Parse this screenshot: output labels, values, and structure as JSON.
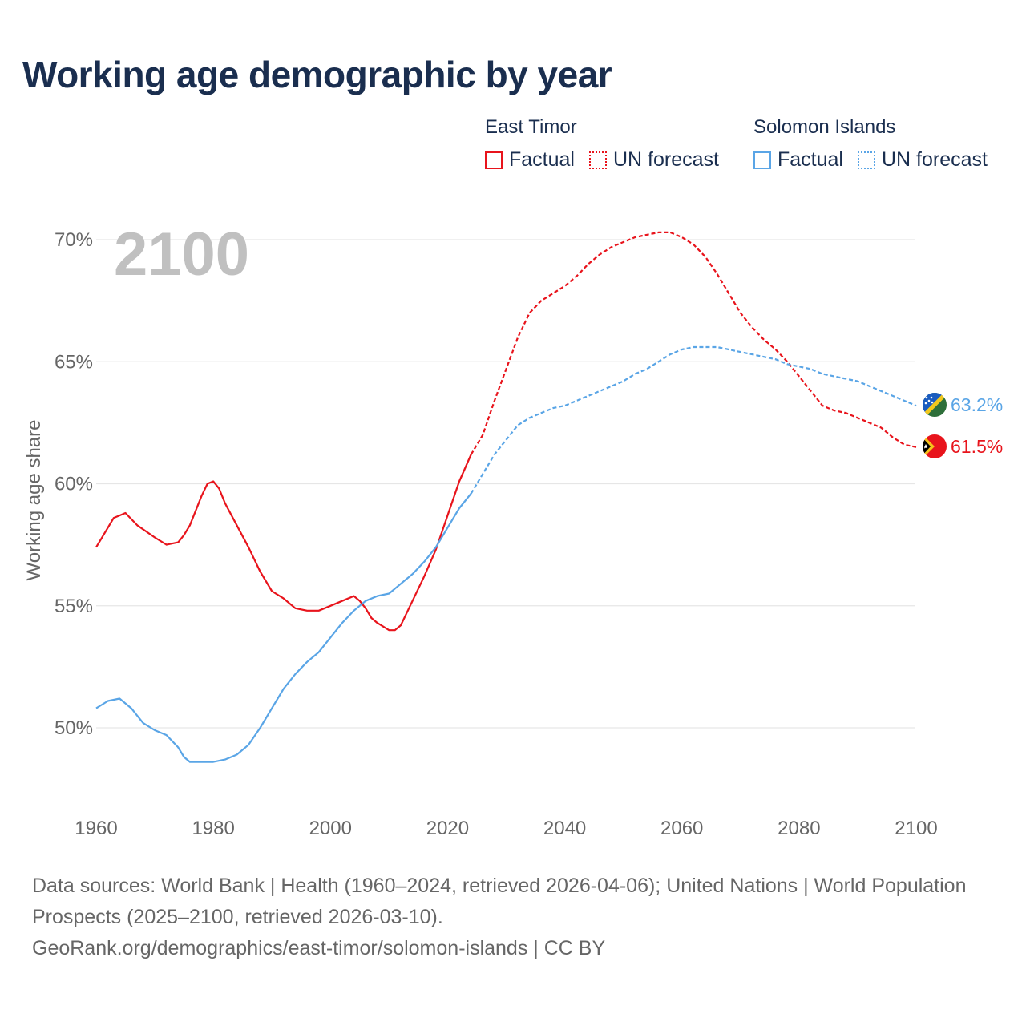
{
  "title": "Working age demographic by year",
  "legend": {
    "groups": [
      {
        "name": "East Timor",
        "color": "#e8141c",
        "items": [
          {
            "label": "Factual",
            "style": "solid"
          },
          {
            "label": "UN forecast",
            "style": "dotted"
          }
        ]
      },
      {
        "name": "Solomon Islands",
        "color": "#5aa5e6",
        "items": [
          {
            "label": "Factual",
            "style": "solid"
          },
          {
            "label": "UN forecast",
            "style": "dotted"
          }
        ]
      }
    ]
  },
  "footer": {
    "line1": "Data sources: World Bank | Health (1960–2024, retrieved 2026-04-06); United Nations | World Population Prospects (2025–2100, retrieved 2026-03-10).",
    "line2": "GeoRank.org/demographics/east-timor/solomon-islands | CC BY"
  },
  "chart_data": {
    "type": "line",
    "title": "Working age demographic by year",
    "ylabel": "Working age share",
    "xlabel": "",
    "year_label": "2100",
    "xlim": [
      1960,
      2100
    ],
    "ylim": [
      47,
      72
    ],
    "x_ticks": [
      "1960",
      "1980",
      "2000",
      "2020",
      "2040",
      "2060",
      "2080",
      "2100"
    ],
    "x_tick_values": [
      1960,
      1980,
      2000,
      2020,
      2040,
      2060,
      2080,
      2100
    ],
    "y_ticks": [
      "50%",
      "55%",
      "60%",
      "65%",
      "70%"
    ],
    "y_tick_values": [
      50,
      55,
      60,
      65,
      70
    ],
    "forecast_start": 2024,
    "series": [
      {
        "name": "East Timor",
        "color": "#e8141c",
        "end_label": "61.5%",
        "flag_icon": "east-timor-flag-icon",
        "x": [
          1960,
          1962,
          1963,
          1964,
          1965,
          1967,
          1970,
          1972,
          1974,
          1975,
          1976,
          1978,
          1979,
          1980,
          1981,
          1982,
          1984,
          1986,
          1988,
          1990,
          1992,
          1994,
          1996,
          1998,
          2000,
          2002,
          2004,
          2005,
          2006,
          2007,
          2008,
          2010,
          2011,
          2012,
          2014,
          2016,
          2018,
          2020,
          2022,
          2024,
          2026,
          2028,
          2030,
          2032,
          2034,
          2036,
          2038,
          2040,
          2042,
          2044,
          2046,
          2048,
          2050,
          2052,
          2054,
          2056,
          2058,
          2060,
          2062,
          2064,
          2066,
          2068,
          2070,
          2072,
          2074,
          2076,
          2078,
          2080,
          2082,
          2084,
          2086,
          2088,
          2090,
          2092,
          2094,
          2096,
          2098,
          2100
        ],
        "values": [
          57.4,
          58.2,
          58.6,
          58.7,
          58.8,
          58.3,
          57.8,
          57.5,
          57.6,
          57.9,
          58.3,
          59.5,
          60.0,
          60.1,
          59.8,
          59.2,
          58.3,
          57.4,
          56.4,
          55.6,
          55.3,
          54.9,
          54.8,
          54.8,
          55.0,
          55.2,
          55.4,
          55.2,
          54.9,
          54.5,
          54.3,
          54.0,
          54.0,
          54.2,
          55.2,
          56.2,
          57.3,
          58.7,
          60.1,
          61.2,
          62.0,
          63.4,
          64.7,
          66.0,
          67.0,
          67.5,
          67.8,
          68.1,
          68.5,
          69.0,
          69.4,
          69.7,
          69.9,
          70.1,
          70.2,
          70.3,
          70.3,
          70.1,
          69.8,
          69.3,
          68.6,
          67.8,
          67.0,
          66.4,
          65.9,
          65.5,
          65.0,
          64.4,
          63.8,
          63.2,
          63.0,
          62.9,
          62.7,
          62.5,
          62.3,
          61.9,
          61.6,
          61.5
        ]
      },
      {
        "name": "Solomon Islands",
        "color": "#5aa5e6",
        "end_label": "63.2%",
        "flag_icon": "solomon-islands-flag-icon",
        "x": [
          1960,
          1962,
          1964,
          1966,
          1968,
          1970,
          1972,
          1974,
          1975,
          1976,
          1978,
          1980,
          1982,
          1984,
          1986,
          1988,
          1990,
          1992,
          1994,
          1996,
          1998,
          2000,
          2002,
          2004,
          2006,
          2008,
          2010,
          2012,
          2014,
          2016,
          2018,
          2020,
          2022,
          2024,
          2026,
          2028,
          2030,
          2032,
          2034,
          2036,
          2038,
          2040,
          2042,
          2044,
          2046,
          2048,
          2050,
          2052,
          2054,
          2056,
          2058,
          2060,
          2062,
          2064,
          2066,
          2068,
          2070,
          2072,
          2074,
          2076,
          2078,
          2080,
          2082,
          2084,
          2086,
          2088,
          2090,
          2092,
          2094,
          2096,
          2098,
          2100
        ],
        "values": [
          50.8,
          51.1,
          51.2,
          50.8,
          50.2,
          49.9,
          49.7,
          49.2,
          48.8,
          48.6,
          48.6,
          48.6,
          48.7,
          48.9,
          49.3,
          50.0,
          50.8,
          51.6,
          52.2,
          52.7,
          53.1,
          53.7,
          54.3,
          54.8,
          55.2,
          55.4,
          55.5,
          55.9,
          56.3,
          56.8,
          57.4,
          58.2,
          59.0,
          59.6,
          60.4,
          61.2,
          61.8,
          62.4,
          62.7,
          62.9,
          63.1,
          63.2,
          63.4,
          63.6,
          63.8,
          64.0,
          64.2,
          64.5,
          64.7,
          65.0,
          65.3,
          65.5,
          65.6,
          65.6,
          65.6,
          65.5,
          65.4,
          65.3,
          65.2,
          65.1,
          64.9,
          64.8,
          64.7,
          64.5,
          64.4,
          64.3,
          64.2,
          64.0,
          63.8,
          63.6,
          63.4,
          63.2
        ]
      }
    ]
  }
}
